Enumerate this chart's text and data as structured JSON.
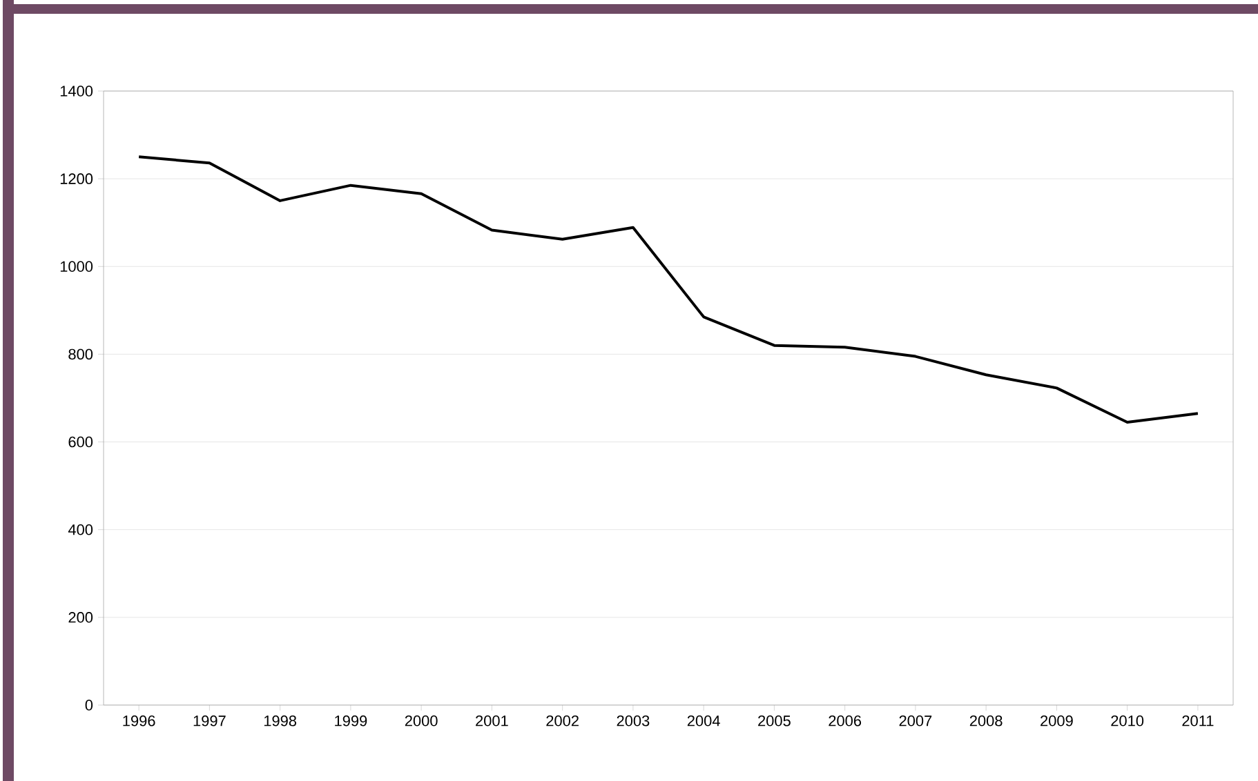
{
  "chart_data": {
    "type": "line",
    "categories": [
      "1996",
      "1997",
      "1998",
      "1999",
      "2000",
      "2001",
      "2002",
      "2003",
      "2004",
      "2005",
      "2006",
      "2007",
      "2008",
      "2009",
      "2010",
      "2011"
    ],
    "series": [
      {
        "color": "#000000",
        "values": [
          1250,
          1236,
          1150,
          1185,
          1166,
          1083,
          1062,
          1089,
          885,
          820,
          816,
          795,
          753,
          723,
          645,
          665
        ]
      }
    ],
    "ylim": [
      0,
      1400
    ],
    "yticks": [
      0,
      200,
      400,
      600,
      800,
      1000,
      1200,
      1400
    ],
    "grid": "y"
  }
}
